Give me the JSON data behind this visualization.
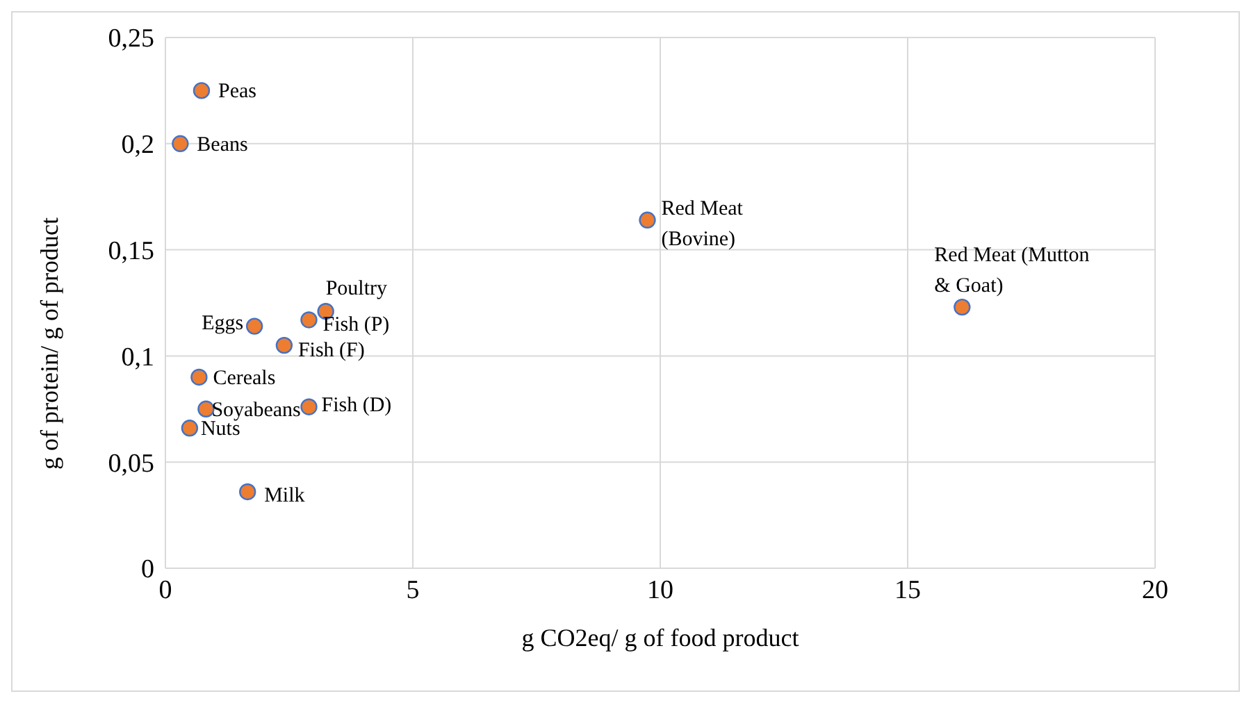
{
  "chart_data": {
    "type": "scatter",
    "xlabel": "g CO2eq/ g of food product",
    "ylabel": "g of protein/ g of product",
    "series": [
      {
        "color": "#ed7d31",
        "x": [
          0.73,
          0.3,
          9.74,
          16.1,
          3.24,
          2.9,
          1.8,
          2.4,
          0.68,
          2.9,
          0.82,
          0.49,
          1.66
        ],
        "values": [
          0.225,
          0.2,
          0.164,
          0.123,
          0.121,
          0.117,
          0.114,
          0.105,
          0.09,
          0.076,
          0.075,
          0.066,
          0.036
        ]
      }
    ],
    "annotations": [
      {
        "text": "Peas",
        "x": 0.73,
        "y": 0.225
      },
      {
        "text": "Beans",
        "x": 0.3,
        "y": 0.2
      },
      {
        "text": "Red Meat (Bovine)",
        "x": 9.74,
        "y": 0.164
      },
      {
        "text": "Red Meat (Mutton & Goat)",
        "x": 16.1,
        "y": 0.123
      },
      {
        "text": "Poultry",
        "x": 3.24,
        "y": 0.121
      },
      {
        "text": "Fish (P)",
        "x": 2.9,
        "y": 0.117
      },
      {
        "text": "Eggs",
        "x": 1.8,
        "y": 0.114
      },
      {
        "text": "Fish (F)",
        "x": 2.4,
        "y": 0.105
      },
      {
        "text": "Cereals",
        "x": 0.68,
        "y": 0.09
      },
      {
        "text": "Fish (D)",
        "x": 2.9,
        "y": 0.076
      },
      {
        "text": "Soyabeans",
        "x": 0.82,
        "y": 0.075
      },
      {
        "text": "Nuts",
        "x": 0.49,
        "y": 0.066
      },
      {
        "text": "Milk",
        "x": 1.66,
        "y": 0.036
      }
    ],
    "xlim": [
      0,
      20
    ],
    "xticks": [
      0,
      5,
      10,
      15,
      20
    ],
    "ylim": [
      0,
      0.25
    ],
    "yticks": [
      {
        "value": 0,
        "label": "0"
      },
      {
        "value": 0.05,
        "label": "0,05"
      },
      {
        "value": 0.1,
        "label": "0,1"
      },
      {
        "value": 0.15,
        "label": "0,15"
      },
      {
        "value": 0.2,
        "label": "0,2"
      },
      {
        "value": 0.25,
        "label": "0,25"
      }
    ],
    "grid": true,
    "legend": false,
    "marker": "circle"
  }
}
